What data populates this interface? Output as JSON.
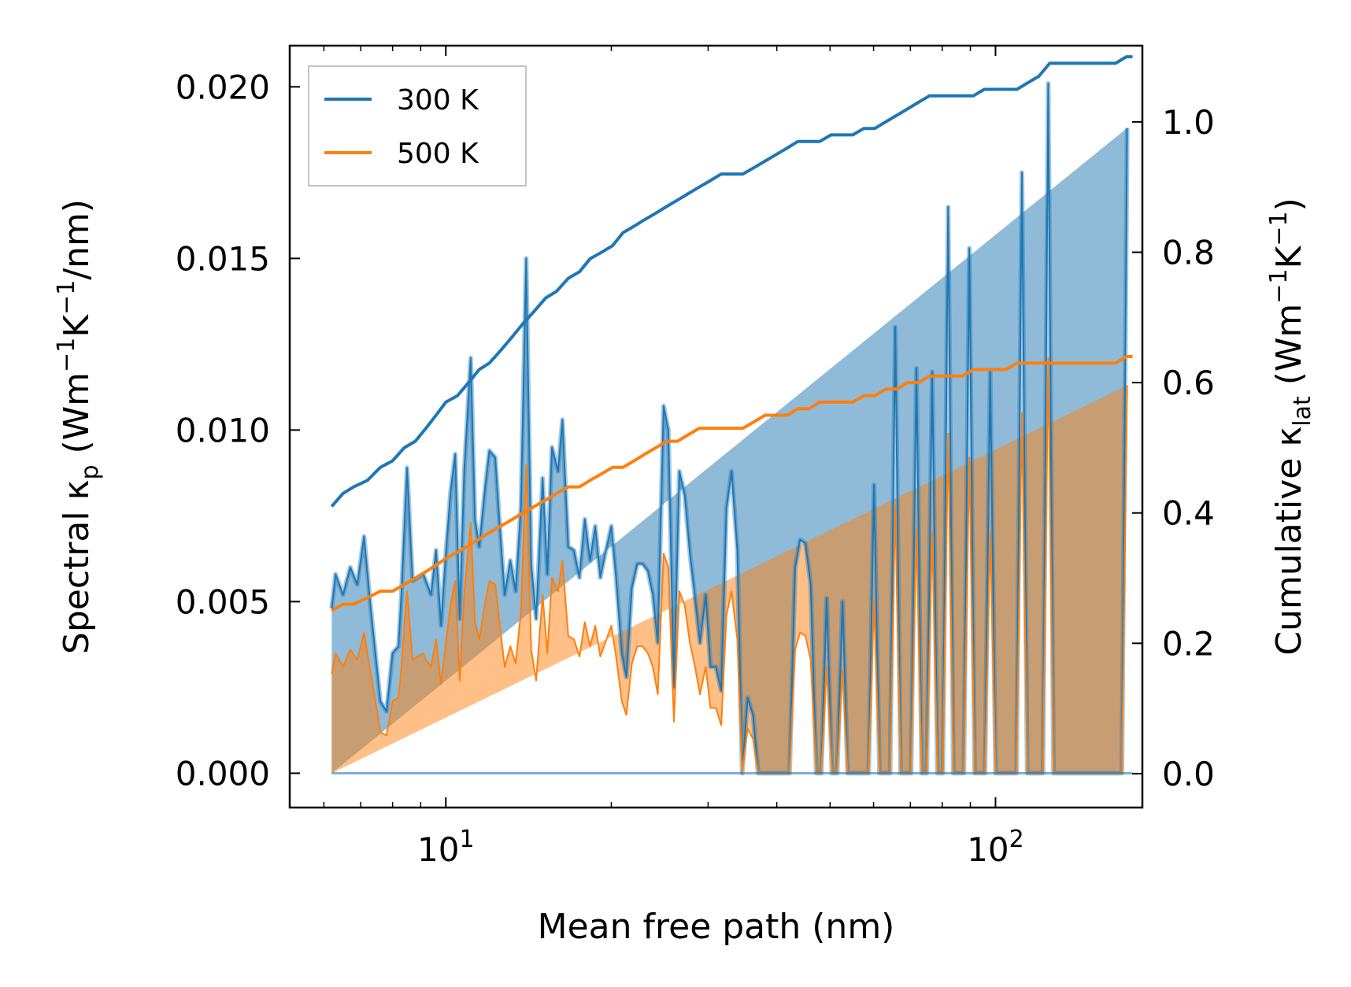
{
  "chart_data": {
    "type": "line",
    "xlabel": "Mean free path (nm)",
    "ylabel_left": {
      "main": "Spectral κ",
      "sub": "p",
      "unit": "(Wm",
      "exp1": "−1",
      "mid": "K",
      "exp2": "−1",
      "tail": "/nm)"
    },
    "ylabel_right": {
      "main": "Cumulative κ",
      "sub": "lat",
      "unit": "(Wm",
      "exp1": "−1",
      "mid": "K",
      "exp2": "−1",
      "tail": ")"
    },
    "xscale": "log",
    "xlim": [
      5.2,
      185
    ],
    "ylim_left": [
      -0.001,
      0.0212
    ],
    "ylim_right": [
      -0.052,
      1.117
    ],
    "x_ticks": [
      {
        "base": "10",
        "exp": "1",
        "value": 10
      },
      {
        "base": "10",
        "exp": "2",
        "value": 100
      }
    ],
    "y_ticks_left": [
      "0.000",
      "0.005",
      "0.010",
      "0.015",
      "0.020"
    ],
    "y_ticks_right": [
      "0.0",
      "0.2",
      "0.4",
      "0.6",
      "0.8",
      "1.0"
    ],
    "legend": {
      "position": "top-left",
      "entries": [
        "300 K",
        "500 K"
      ]
    },
    "series_colors": {
      "300 K": "#1f77b4",
      "500 K": "#ff7f0e"
    },
    "spectral": {
      "x": [
        6.2,
        6.3,
        6.5,
        6.7,
        6.9,
        7.1,
        7.3,
        7.5,
        7.6,
        7.8,
        8.0,
        8.2,
        8.3,
        8.5,
        8.7,
        8.9,
        9.1,
        9.2,
        9.4,
        9.6,
        9.8,
        10.0,
        10.2,
        10.4,
        10.6,
        10.8,
        11.1,
        11.3,
        11.5,
        11.8,
        12.0,
        12.3,
        12.5,
        12.8,
        13.1,
        13.4,
        13.7,
        14.0,
        14.3,
        14.6,
        15.0,
        15.3,
        15.6,
        16.0,
        16.3,
        16.7,
        17.1,
        17.5,
        17.9,
        18.3,
        18.7,
        19.1,
        19.5,
        20.0,
        20.4,
        20.9,
        21.3,
        21.8,
        22.3,
        22.8,
        23.3,
        23.8,
        24.3,
        24.9,
        25.4,
        26.0,
        26.6,
        27.2,
        27.8,
        28.4,
        29.0,
        29.7,
        30.3,
        31.0,
        31.7,
        32.4,
        33.1,
        33.9,
        34.6,
        35.4,
        36.2,
        37.0,
        37.8,
        38.7,
        39.5,
        40.4,
        41.3,
        42.2,
        43.2,
        44.1,
        45.1,
        46.1,
        47.2,
        48.2,
        49.3,
        50.4,
        51.5,
        52.7,
        53.8,
        55.0,
        56.3,
        57.5,
        58.8,
        60.1,
        61.5,
        62.9,
        64.3,
        65.7,
        67.2,
        68.7,
        70.2,
        71.8,
        73.4,
        75.0,
        76.7,
        78.4,
        80.2,
        82.0,
        83.8,
        85.7,
        87.6,
        89.6,
        91.6,
        93.6,
        95.7,
        97.8,
        100.0,
        102.2,
        104.5,
        106.9,
        109.2,
        111.7,
        114.2,
        116.7,
        119.3,
        122.0,
        124.7,
        127.5,
        130.3,
        133.2,
        136.2,
        139.3,
        142.4,
        145.5,
        148.8,
        152.1,
        155.5,
        159.0,
        162.5,
        166.1,
        169.8,
        173.6,
        177.5
      ],
      "y300": [
        0.0048,
        0.0058,
        0.0052,
        0.006,
        0.0055,
        0.0069,
        0.0048,
        0.003,
        0.0021,
        0.0018,
        0.0035,
        0.0037,
        0.0052,
        0.0089,
        0.0056,
        0.0057,
        0.0058,
        0.0056,
        0.0052,
        0.0065,
        0.0043,
        0.0064,
        0.0082,
        0.0093,
        0.0045,
        0.0088,
        0.0121,
        0.0074,
        0.0066,
        0.0084,
        0.0094,
        0.0092,
        0.0075,
        0.0052,
        0.0062,
        0.0053,
        0.0078,
        0.015,
        0.0061,
        0.0045,
        0.0086,
        0.0058,
        0.0095,
        0.0088,
        0.0103,
        0.0066,
        0.0065,
        0.0057,
        0.0074,
        0.0062,
        0.0072,
        0.0057,
        0.0064,
        0.0072,
        0.0057,
        0.0035,
        0.0028,
        0.0054,
        0.0061,
        0.0061,
        0.0059,
        0.0052,
        0.0038,
        0.0107,
        0.01,
        0.0025,
        0.0088,
        0.0081,
        0.0064,
        0.0051,
        0.0038,
        0.0052,
        0.0031,
        0.0031,
        0.0024,
        0.0077,
        0.0088,
        0.0065,
        0.0,
        0.0022,
        0.0017,
        0.0,
        0.0,
        0.0,
        0.0,
        0.0,
        0.0,
        0.0,
        0.006,
        0.0068,
        0.0067,
        0.0055,
        0.0,
        0.0,
        0.0051,
        0.0,
        0.0,
        0.005,
        0.0,
        0.0,
        0.0,
        0.0,
        0.0,
        0.0084,
        0.0,
        0.0,
        0.0,
        0.013,
        0.0,
        0.0,
        0.0,
        0.0118,
        0.0,
        0.0,
        0.0117,
        0.0,
        0.0,
        0.0165,
        0.0,
        0.0,
        0.0,
        0.0153,
        0.0,
        0.0,
        0.0,
        0.0117,
        0.0,
        0.0,
        0.0,
        0.0,
        0.0,
        0.0175,
        0.0,
        0.0,
        0.0,
        0.0,
        0.0201,
        0.0,
        0.0,
        0.0,
        0.0,
        0.0,
        0.0,
        0.0,
        0.0,
        0.0,
        0.0,
        0.0,
        0.0,
        0.0,
        0.0,
        0.0188
      ],
      "y500": [
        0.0029,
        0.0035,
        0.0031,
        0.0036,
        0.0033,
        0.0041,
        0.0029,
        0.0018,
        0.0012,
        0.0011,
        0.0021,
        0.0022,
        0.0031,
        0.0053,
        0.0033,
        0.0034,
        0.0035,
        0.0033,
        0.0031,
        0.0039,
        0.0026,
        0.0038,
        0.0049,
        0.0056,
        0.0027,
        0.0052,
        0.0073,
        0.0044,
        0.0039,
        0.005,
        0.0056,
        0.0055,
        0.0045,
        0.0031,
        0.0037,
        0.0032,
        0.0047,
        0.009,
        0.0036,
        0.0027,
        0.0052,
        0.0035,
        0.0057,
        0.0053,
        0.0062,
        0.004,
        0.0039,
        0.0034,
        0.0044,
        0.0037,
        0.0043,
        0.0034,
        0.0038,
        0.0043,
        0.0034,
        0.0021,
        0.0017,
        0.0032,
        0.0037,
        0.0037,
        0.0035,
        0.0031,
        0.0023,
        0.0064,
        0.006,
        0.0015,
        0.0053,
        0.0049,
        0.0038,
        0.0031,
        0.0023,
        0.0031,
        0.0019,
        0.0019,
        0.0014,
        0.0046,
        0.0053,
        0.0039,
        0.0,
        0.0013,
        0.001,
        0.0,
        0.0,
        0.0,
        0.0,
        0.0,
        0.0,
        0.0,
        0.0036,
        0.0041,
        0.004,
        0.0033,
        0.0,
        0.0,
        0.0031,
        0.0,
        0.0,
        0.003,
        0.0,
        0.0,
        0.0,
        0.0,
        0.0,
        0.005,
        0.0,
        0.0,
        0.0,
        0.0078,
        0.0,
        0.0,
        0.0,
        0.0071,
        0.0,
        0.0,
        0.007,
        0.0,
        0.0,
        0.0099,
        0.0,
        0.0,
        0.0,
        0.0092,
        0.0,
        0.0,
        0.0,
        0.007,
        0.0,
        0.0,
        0.0,
        0.0,
        0.0,
        0.0105,
        0.0,
        0.0,
        0.0,
        0.0,
        0.0121,
        0.0,
        0.0,
        0.0,
        0.0,
        0.0,
        0.0,
        0.0,
        0.0,
        0.0,
        0.0,
        0.0,
        0.0,
        0.0,
        0.0,
        0.0113
      ]
    },
    "cumulative": {
      "x": [
        6.2,
        6.5,
        6.8,
        7.2,
        7.6,
        8.0,
        8.4,
        8.8,
        9.2,
        9.6,
        10.0,
        10.5,
        11.0,
        11.5,
        12.0,
        12.6,
        13.2,
        13.8,
        14.5,
        15.2,
        15.9,
        16.7,
        17.5,
        18.3,
        19.2,
        20.1,
        21.0,
        22.0,
        23.0,
        24.1,
        25.2,
        26.4,
        27.6,
        28.9,
        30.3,
        31.7,
        33.2,
        34.7,
        36.4,
        38.1,
        39.9,
        41.8,
        43.7,
        45.8,
        47.9,
        50.2,
        52.5,
        55.0,
        57.6,
        60.3,
        63.1,
        66.1,
        69.2,
        72.4,
        75.8,
        79.4,
        83.1,
        87.0,
        91.1,
        95.4,
        99.8,
        104.5,
        109.4,
        114.5,
        119.9,
        125.5,
        131.4,
        137.6,
        144.0,
        150.8,
        157.9,
        165.3,
        173.0,
        177.5
      ],
      "y300": [
        0.41,
        0.43,
        0.44,
        0.45,
        0.47,
        0.48,
        0.5,
        0.51,
        0.53,
        0.55,
        0.57,
        0.58,
        0.6,
        0.62,
        0.63,
        0.65,
        0.67,
        0.69,
        0.71,
        0.73,
        0.74,
        0.76,
        0.77,
        0.79,
        0.8,
        0.81,
        0.83,
        0.84,
        0.85,
        0.86,
        0.87,
        0.88,
        0.89,
        0.9,
        0.91,
        0.92,
        0.92,
        0.92,
        0.93,
        0.94,
        0.95,
        0.96,
        0.97,
        0.97,
        0.97,
        0.98,
        0.98,
        0.98,
        0.99,
        0.99,
        1.0,
        1.01,
        1.02,
        1.03,
        1.04,
        1.04,
        1.04,
        1.04,
        1.04,
        1.05,
        1.05,
        1.05,
        1.05,
        1.06,
        1.07,
        1.09,
        1.09,
        1.09,
        1.09,
        1.09,
        1.09,
        1.09,
        1.1,
        1.1
      ],
      "y500": [
        0.25,
        0.26,
        0.26,
        0.27,
        0.28,
        0.28,
        0.29,
        0.3,
        0.31,
        0.32,
        0.33,
        0.34,
        0.35,
        0.36,
        0.37,
        0.38,
        0.39,
        0.4,
        0.41,
        0.42,
        0.43,
        0.44,
        0.44,
        0.45,
        0.46,
        0.47,
        0.47,
        0.48,
        0.49,
        0.5,
        0.51,
        0.51,
        0.52,
        0.53,
        0.53,
        0.53,
        0.53,
        0.53,
        0.54,
        0.55,
        0.55,
        0.55,
        0.56,
        0.56,
        0.57,
        0.57,
        0.57,
        0.57,
        0.58,
        0.58,
        0.59,
        0.59,
        0.6,
        0.6,
        0.61,
        0.61,
        0.61,
        0.61,
        0.62,
        0.62,
        0.62,
        0.62,
        0.63,
        0.63,
        0.63,
        0.63,
        0.63,
        0.63,
        0.63,
        0.63,
        0.63,
        0.63,
        0.64,
        0.64
      ]
    }
  }
}
